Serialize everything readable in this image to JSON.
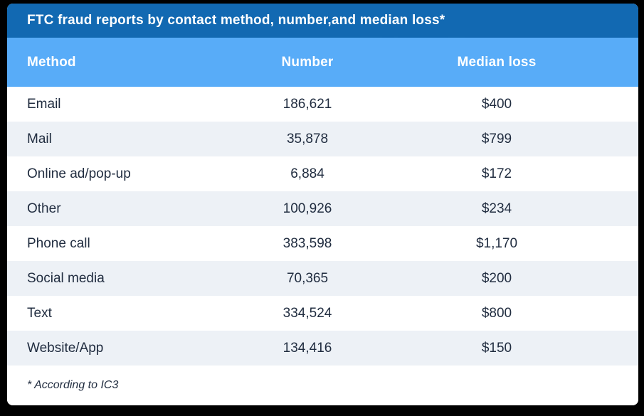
{
  "title": "FTC fraud reports by contact method, number,and median loss*",
  "footnote": "* According to IC3",
  "table": {
    "columns": [
      "Method",
      "Number",
      "Median loss"
    ],
    "rows": [
      {
        "method": "Email",
        "number": "186,621",
        "median_loss": "$400"
      },
      {
        "method": "Mail",
        "number": "35,878",
        "median_loss": "$799"
      },
      {
        "method": "Online ad/pop-up",
        "number": "6,884",
        "median_loss": "$172"
      },
      {
        "method": "Other",
        "number": "100,926",
        "median_loss": "$234"
      },
      {
        "method": "Phone call",
        "number": "383,598",
        "median_loss": "$1,170"
      },
      {
        "method": "Social media",
        "number": "70,365",
        "median_loss": "$200"
      },
      {
        "method": "Text",
        "number": "334,524",
        "median_loss": "$800"
      },
      {
        "method": "Website/App",
        "number": "134,416",
        "median_loss": "$150"
      }
    ]
  },
  "chart_data": {
    "type": "table",
    "title": "FTC fraud reports by contact method, number,and median loss*",
    "columns": [
      "Method",
      "Number",
      "Median loss"
    ],
    "rows": [
      [
        "Email",
        186621,
        400
      ],
      [
        "Mail",
        35878,
        799
      ],
      [
        "Online ad/pop-up",
        6884,
        172
      ],
      [
        "Other",
        100926,
        234
      ],
      [
        "Phone call",
        383598,
        1170
      ],
      [
        "Social media",
        70365,
        200
      ],
      [
        "Text",
        334524,
        800
      ],
      [
        "Website/App",
        134416,
        150
      ]
    ],
    "footnote": "* According to IC3"
  },
  "colors": {
    "background": "#000000",
    "card": "#ffffff",
    "title_bar": "#1269b2",
    "header_row": "#58acf8",
    "alt_row": "#edf1f6",
    "text": "#212d40",
    "header_text": "#ffffff"
  }
}
